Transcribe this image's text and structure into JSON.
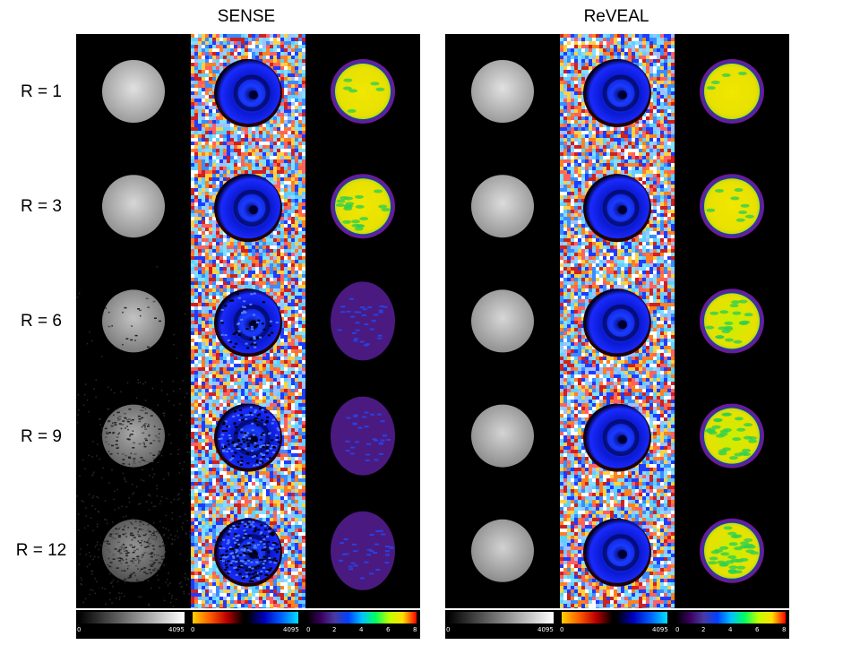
{
  "panels": [
    {
      "title": "SENSE"
    },
    {
      "title": "ReVEAL"
    }
  ],
  "rows": [
    {
      "label": "R = 1"
    },
    {
      "label": "R = 3"
    },
    {
      "label": "R = 6"
    },
    {
      "label": "R = 9"
    },
    {
      "label": "R = 12"
    }
  ],
  "colorbars": {
    "magnitude": {
      "min": "0",
      "max": "4095",
      "colormap": "gray"
    },
    "phase": {
      "min": "0",
      "max": "4095",
      "colormap": "hot-cool"
    },
    "map": {
      "ticks": [
        "0",
        "2",
        "4",
        "6",
        "8"
      ],
      "colormap": "jet-like"
    }
  },
  "colors": {
    "panel_bg": "#000000",
    "phase_inner": "#1a1aff",
    "map_fill": "#e8e000",
    "map_ring": "#6a1a9a",
    "map_low": "#5a2a90"
  }
}
